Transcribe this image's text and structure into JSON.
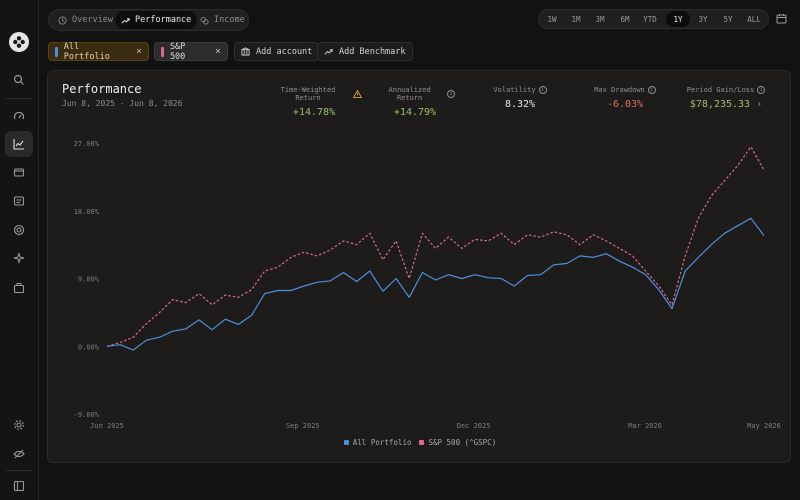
{
  "tabs": [
    {
      "label": "Overview",
      "icon": "clock-icon",
      "active": false
    },
    {
      "label": "Performance",
      "icon": "trend-icon",
      "active": true
    },
    {
      "label": "Income",
      "icon": "coins-icon",
      "active": false
    }
  ],
  "ranges": [
    "1W",
    "1M",
    "3M",
    "6M",
    "YTD",
    "1Y",
    "3Y",
    "5Y",
    "ALL"
  ],
  "active_range": "1Y",
  "chips": {
    "portfolio": "All Portfolio",
    "benchmark": "S&P 500",
    "add_account": "Add account",
    "add_benchmark": "Add Benchmark"
  },
  "card": {
    "title": "Performance",
    "date_range": "Jun 8, 2025 - Jun 8, 2026"
  },
  "metrics": [
    {
      "label": "Time-Weighted Return",
      "value": "+14.78%",
      "icon": "warning-icon"
    },
    {
      "label": "Annualized Return",
      "value": "+14.79%",
      "icon": "info-icon"
    },
    {
      "label": "Volatility",
      "value": "8.32%",
      "icon": "info-icon"
    },
    {
      "label": "Max Drawdown",
      "value": "-6.03%",
      "icon": "info-icon"
    },
    {
      "label": "Period Gain/Loss",
      "value": "$78,235.33",
      "icon": "info-icon"
    }
  ],
  "colors": {
    "portfolio": "#4a90d9",
    "benchmark": "#d96a8c",
    "positive": "#9fbd6e",
    "negative": "#e07060"
  },
  "chart_data": {
    "type": "line",
    "ylim": [
      -9,
      27
    ],
    "y_ticks": [
      -9,
      0,
      9,
      18,
      27
    ],
    "y_tick_labels": [
      "-9.00%",
      "0.00%",
      "9.00%",
      "18.00%",
      "27.00%"
    ],
    "x_tick_labels": [
      "Jun 2025",
      "Sep 2025",
      "Dec 2025",
      "Mar 2026",
      "May 2026"
    ],
    "x_tick_pos": [
      0,
      0.298,
      0.558,
      0.819,
      1.0
    ],
    "series": [
      {
        "name": "All Portfolio",
        "x": [
          0,
          0.02,
          0.04,
          0.06,
          0.08,
          0.1,
          0.12,
          0.14,
          0.16,
          0.18,
          0.2,
          0.22,
          0.24,
          0.26,
          0.28,
          0.3,
          0.32,
          0.34,
          0.36,
          0.38,
          0.4,
          0.42,
          0.44,
          0.46,
          0.48,
          0.5,
          0.52,
          0.54,
          0.56,
          0.58,
          0.6,
          0.62,
          0.64,
          0.66,
          0.68,
          0.7,
          0.72,
          0.74,
          0.76,
          0.78,
          0.8,
          0.82,
          0.84,
          0.86,
          0.88,
          0.9,
          0.92,
          0.94,
          0.96,
          0.98,
          1.0
        ],
        "values": [
          0,
          0.2,
          -0.5,
          0.8,
          1.2,
          2.0,
          2.3,
          3.5,
          2.2,
          3.6,
          2.9,
          4.1,
          7.0,
          7.4,
          7.4,
          8.0,
          8.5,
          8.7,
          9.8,
          8.6,
          10.0,
          7.3,
          9.0,
          6.5,
          9.8,
          8.8,
          9.5,
          9.0,
          9.5,
          9.1,
          9.0,
          8.0,
          9.4,
          9.5,
          10.8,
          11.0,
          12.0,
          11.8,
          12.3,
          11.3,
          10.5,
          9.5,
          7.5,
          5.0,
          10.0,
          11.8,
          13.5,
          15.0,
          16.0,
          17.0,
          14.7
        ]
      },
      {
        "name": "S&P 500 (^GSPC)",
        "x": [
          0,
          0.02,
          0.04,
          0.06,
          0.08,
          0.1,
          0.12,
          0.14,
          0.16,
          0.18,
          0.2,
          0.22,
          0.24,
          0.26,
          0.28,
          0.3,
          0.32,
          0.34,
          0.36,
          0.38,
          0.4,
          0.42,
          0.44,
          0.46,
          0.48,
          0.5,
          0.52,
          0.54,
          0.56,
          0.58,
          0.6,
          0.62,
          0.64,
          0.66,
          0.68,
          0.7,
          0.72,
          0.74,
          0.76,
          0.78,
          0.8,
          0.82,
          0.84,
          0.86,
          0.88,
          0.9,
          0.92,
          0.94,
          0.96,
          0.98,
          1.0
        ],
        "values": [
          0,
          0.5,
          1.2,
          3.0,
          4.5,
          6.2,
          5.8,
          7.0,
          5.5,
          6.8,
          6.5,
          7.5,
          10.0,
          10.5,
          11.8,
          12.5,
          12.0,
          12.8,
          14.0,
          13.5,
          15.0,
          11.5,
          14.0,
          9.0,
          15.0,
          13.0,
          14.5,
          13.0,
          14.2,
          14.0,
          15.0,
          13.5,
          14.8,
          14.5,
          15.2,
          14.8,
          13.5,
          14.8,
          14.0,
          13.0,
          12.0,
          10.0,
          8.0,
          5.5,
          12.0,
          17.0,
          20.0,
          22.0,
          24.0,
          26.5,
          23.4
        ]
      }
    ]
  }
}
